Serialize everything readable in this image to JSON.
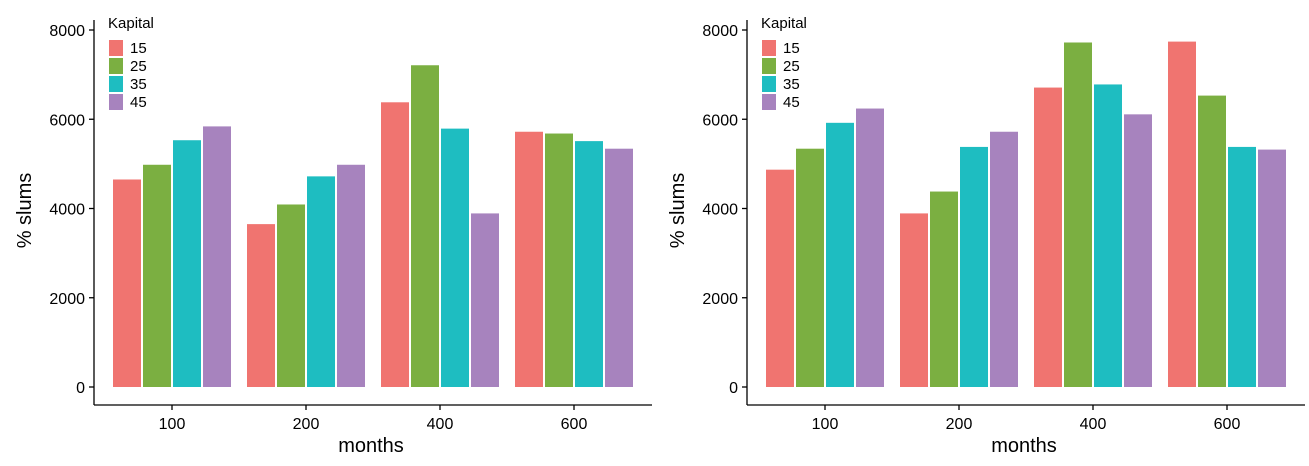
{
  "colors": {
    "15": "#F07470",
    "25": "#7BAF41",
    "35": "#1EBDC1",
    "45": "#A783BE"
  },
  "chart_data": [
    {
      "type": "bar",
      "categories": [
        "100",
        "200",
        "400",
        "600"
      ],
      "series": [
        {
          "name": "15",
          "values": [
            4650,
            3650,
            6380,
            5720
          ]
        },
        {
          "name": "25",
          "values": [
            4980,
            4090,
            7210,
            5680
          ]
        },
        {
          "name": "35",
          "values": [
            5530,
            4720,
            5790,
            5510
          ]
        },
        {
          "name": "45",
          "values": [
            5840,
            4980,
            3890,
            5340
          ]
        }
      ],
      "xlabel": "months",
      "ylabel": "% slums",
      "ylim": [
        0,
        8000
      ],
      "yticks": [
        0,
        2000,
        4000,
        6000,
        8000
      ],
      "legend": {
        "title": "Kapital",
        "position": "top-left"
      },
      "grid": false
    },
    {
      "type": "bar",
      "categories": [
        "100",
        "200",
        "400",
        "600"
      ],
      "series": [
        {
          "name": "15",
          "values": [
            4870,
            3890,
            6710,
            7740
          ]
        },
        {
          "name": "25",
          "values": [
            5340,
            4380,
            7720,
            6530
          ]
        },
        {
          "name": "35",
          "values": [
            5920,
            5380,
            6780,
            5380
          ]
        },
        {
          "name": "45",
          "values": [
            6240,
            5720,
            6110,
            5320
          ]
        }
      ],
      "xlabel": "months",
      "ylabel": "% slums",
      "ylim": [
        0,
        8000
      ],
      "yticks": [
        0,
        2000,
        4000,
        6000,
        8000
      ],
      "legend": {
        "title": "Kapital",
        "position": "top-left"
      },
      "grid": false
    }
  ]
}
